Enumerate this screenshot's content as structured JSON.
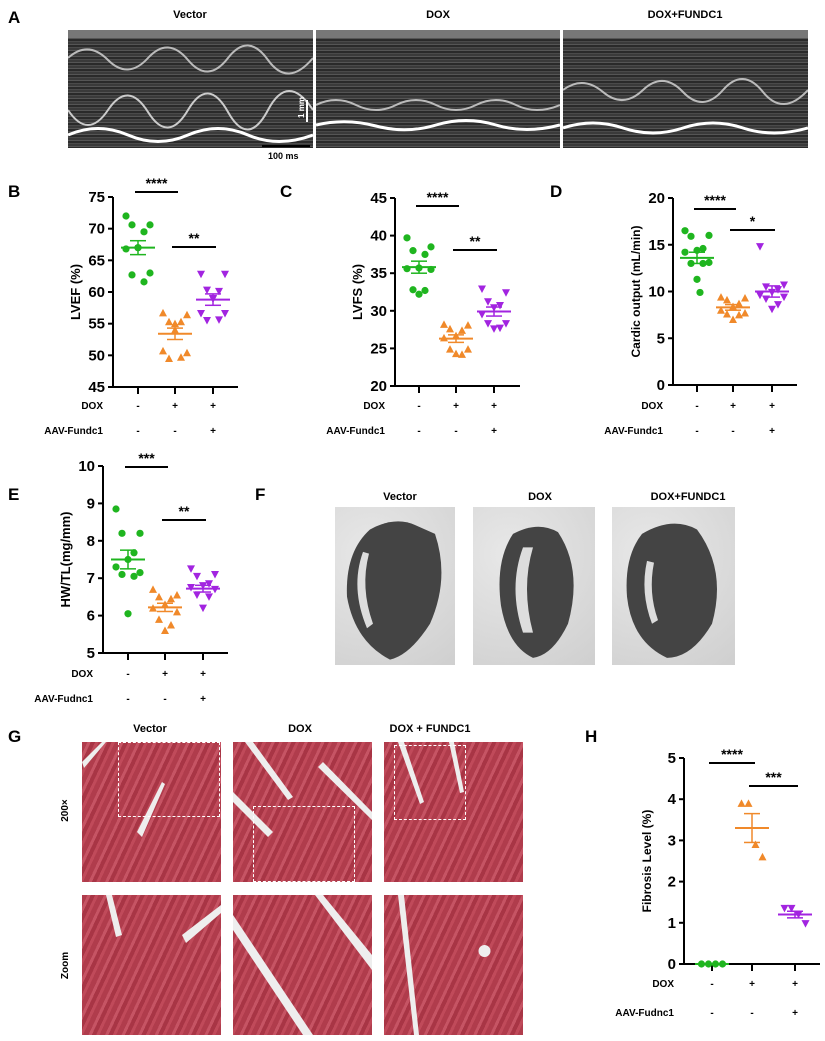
{
  "panels": {
    "A": "A",
    "B": "B",
    "C": "C",
    "D": "D",
    "E": "E",
    "F": "F",
    "G": "G",
    "H": "H"
  },
  "echo": {
    "titles": [
      "Vector",
      "DOX",
      "DOX+FUNDC1"
    ],
    "scale_vertical": "1 mm",
    "scale_horizontal": "100 ms"
  },
  "heart_sections": {
    "titles": [
      "Vector",
      "DOX",
      "DOX+FUNDC1"
    ]
  },
  "histology": {
    "titles": [
      "Vector",
      "DOX",
      "DOX + FUNDC1"
    ],
    "row_labels": [
      "200×",
      "Zoom"
    ]
  },
  "colors": {
    "vector": "#1fb51f",
    "dox": "#f0892a",
    "dox_fundc1": "#a224e0"
  },
  "chart_data": [
    {
      "panel": "B",
      "type": "scatter",
      "ylabel": "LVEF (%)",
      "ylim": [
        45,
        75
      ],
      "yticks": [
        45,
        50,
        55,
        60,
        65,
        70,
        75
      ],
      "factor_rows": [
        {
          "label": "DOX",
          "values": [
            "-",
            "+",
            "+"
          ]
        },
        {
          "label": "AAV-Fundc1",
          "values": [
            "-",
            "-",
            "+"
          ]
        }
      ],
      "groups": [
        {
          "marker": "circle",
          "color": "#1fb51f",
          "points": [
            72,
            70.6,
            70.6,
            69.5,
            67,
            66.8,
            63,
            62.7,
            61.6,
            67
          ],
          "mean": 67,
          "sem": 1.1
        },
        {
          "marker": "triangle-up",
          "color": "#f0892a",
          "points": [
            56.7,
            56.4,
            55.3,
            55.3,
            54,
            50.7,
            50.4,
            49.5,
            49.7,
            55
          ],
          "mean": 53.4,
          "sem": 0.9
        },
        {
          "marker": "triangle-down",
          "color": "#a224e0",
          "points": [
            62.8,
            62.8,
            60.3,
            60.1,
            59,
            56.6,
            56.6,
            55.5,
            55.6,
            58.9
          ],
          "mean": 58.8,
          "sem": 0.9
        }
      ],
      "comparisons": [
        {
          "groups": [
            0,
            1
          ],
          "label": "****"
        },
        {
          "groups": [
            1,
            2
          ],
          "label": "**"
        }
      ]
    },
    {
      "panel": "C",
      "type": "scatter",
      "ylabel": "LVFS (%)",
      "ylim": [
        20,
        45
      ],
      "yticks": [
        20,
        25,
        30,
        35,
        40,
        45
      ],
      "factor_rows": [
        {
          "label": "DOX",
          "values": [
            "-",
            "+",
            "+"
          ]
        },
        {
          "label": "AAV-Fundc1",
          "values": [
            "-",
            "-",
            "+"
          ]
        }
      ],
      "groups": [
        {
          "marker": "circle",
          "color": "#1fb51f",
          "points": [
            39.7,
            38.5,
            38,
            37.5,
            35.7,
            35.6,
            35.5,
            32.8,
            32.7,
            32.2
          ],
          "mean": 35.8,
          "sem": 0.8
        },
        {
          "marker": "triangle-up",
          "color": "#f0892a",
          "points": [
            28.2,
            28.1,
            27.6,
            27.4,
            26.7,
            26.4,
            24.9,
            24.9,
            24.2,
            24.3
          ],
          "mean": 26.3,
          "sem": 0.5
        },
        {
          "marker": "triangle-down",
          "color": "#a224e0",
          "points": [
            32.9,
            32.4,
            31.2,
            30.7,
            30.4,
            29.5,
            28.3,
            28.3,
            27.7,
            27.6
          ],
          "mean": 29.9,
          "sem": 0.6
        }
      ],
      "comparisons": [
        {
          "groups": [
            0,
            1
          ],
          "label": "****"
        },
        {
          "groups": [
            1,
            2
          ],
          "label": "**"
        }
      ]
    },
    {
      "panel": "D",
      "type": "scatter",
      "ylabel": "Cardic output (mL/min)",
      "ylim": [
        0,
        20
      ],
      "yticks": [
        0,
        5,
        10,
        15,
        20
      ],
      "factor_rows": [
        {
          "label": "DOX",
          "values": [
            "-",
            "+",
            "+"
          ]
        },
        {
          "label": "AAV-Fundc1",
          "values": [
            "-",
            "-",
            "+"
          ]
        }
      ],
      "groups": [
        {
          "marker": "circle",
          "color": "#1fb51f",
          "points": [
            16.5,
            16,
            15.9,
            14.6,
            14.4,
            14.2,
            13.1,
            13,
            13,
            11.3,
            9.9
          ],
          "mean": 13.6,
          "sem": 0.6
        },
        {
          "marker": "triangle-up",
          "color": "#f0892a",
          "points": [
            9.4,
            9.3,
            9.1,
            8.7,
            8.4,
            8,
            7.7,
            7.6,
            7.5,
            7.0
          ],
          "mean": 8.3,
          "sem": 0.3
        },
        {
          "marker": "triangle-down",
          "color": "#a224e0",
          "points": [
            14.8,
            10.7,
            10.5,
            10.2,
            9.9,
            9.6,
            9.4,
            9.2,
            8.6,
            8.1
          ],
          "mean": 10.0,
          "sem": 0.6
        }
      ],
      "comparisons": [
        {
          "groups": [
            0,
            1
          ],
          "label": "****"
        },
        {
          "groups": [
            1,
            2
          ],
          "label": "*"
        }
      ]
    },
    {
      "panel": "E",
      "type": "scatter",
      "ylabel": "HW/TL(mg/mm)",
      "ylim": [
        5,
        10
      ],
      "yticks": [
        5,
        6,
        7,
        8,
        9,
        10
      ],
      "factor_rows": [
        {
          "label": "DOX",
          "values": [
            "-",
            "+",
            "+"
          ]
        },
        {
          "label": "AAV-Fudnc1",
          "values": [
            "-",
            "-",
            "+"
          ]
        }
      ],
      "groups": [
        {
          "marker": "circle",
          "color": "#1fb51f",
          "points": [
            8.85,
            8.2,
            8.2,
            7.68,
            7.5,
            7.3,
            7.15,
            7.1,
            7.05,
            6.05
          ],
          "mean": 7.5,
          "sem": 0.25
        },
        {
          "marker": "triangle-up",
          "color": "#f0892a",
          "points": [
            6.7,
            6.55,
            6.5,
            6.45,
            6.3,
            6.2,
            6.1,
            5.9,
            5.75,
            5.6
          ],
          "mean": 6.22,
          "sem": 0.11
        },
        {
          "marker": "triangle-down",
          "color": "#a224e0",
          "points": [
            7.25,
            7.1,
            7.05,
            6.85,
            6.8,
            6.75,
            6.7,
            6.55,
            6.5,
            6.2
          ],
          "mean": 6.72,
          "sem": 0.09
        }
      ],
      "comparisons": [
        {
          "groups": [
            0,
            1
          ],
          "label": "***"
        },
        {
          "groups": [
            1,
            2
          ],
          "label": "**"
        }
      ]
    },
    {
      "panel": "H",
      "type": "scatter",
      "ylabel": "Fibrosis Level (%)",
      "ylim": [
        0,
        5
      ],
      "yticks": [
        0,
        1,
        2,
        3,
        4,
        5
      ],
      "factor_rows": [
        {
          "label": "DOX",
          "values": [
            "-",
            "+",
            "+"
          ]
        },
        {
          "label": "AAV-Fudnc1",
          "values": [
            "-",
            "-",
            "+"
          ]
        }
      ],
      "groups": [
        {
          "marker": "circle",
          "color": "#1fb51f",
          "points": [
            0,
            0,
            0,
            0
          ],
          "mean": 0,
          "sem": 0
        },
        {
          "marker": "triangle-up",
          "color": "#f0892a",
          "points": [
            3.9,
            3.9,
            2.9,
            2.6
          ],
          "mean": 3.3,
          "sem": 0.35
        },
        {
          "marker": "triangle-down",
          "color": "#a224e0",
          "points": [
            1.35,
            1.35,
            1.2,
            0.98
          ],
          "mean": 1.2,
          "sem": 0.08
        }
      ],
      "comparisons": [
        {
          "groups": [
            0,
            1
          ],
          "label": "****"
        },
        {
          "groups": [
            1,
            2
          ],
          "label": "***"
        }
      ]
    }
  ]
}
